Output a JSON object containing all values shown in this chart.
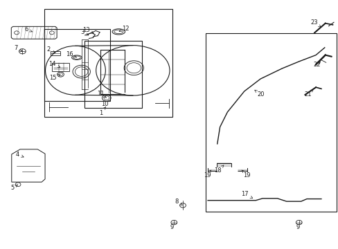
{
  "background_color": "#ffffff",
  "line_color": "#1a1a1a",
  "figsize": [
    4.89,
    3.6
  ],
  "dpi": 100,
  "font_size": 6.0
}
